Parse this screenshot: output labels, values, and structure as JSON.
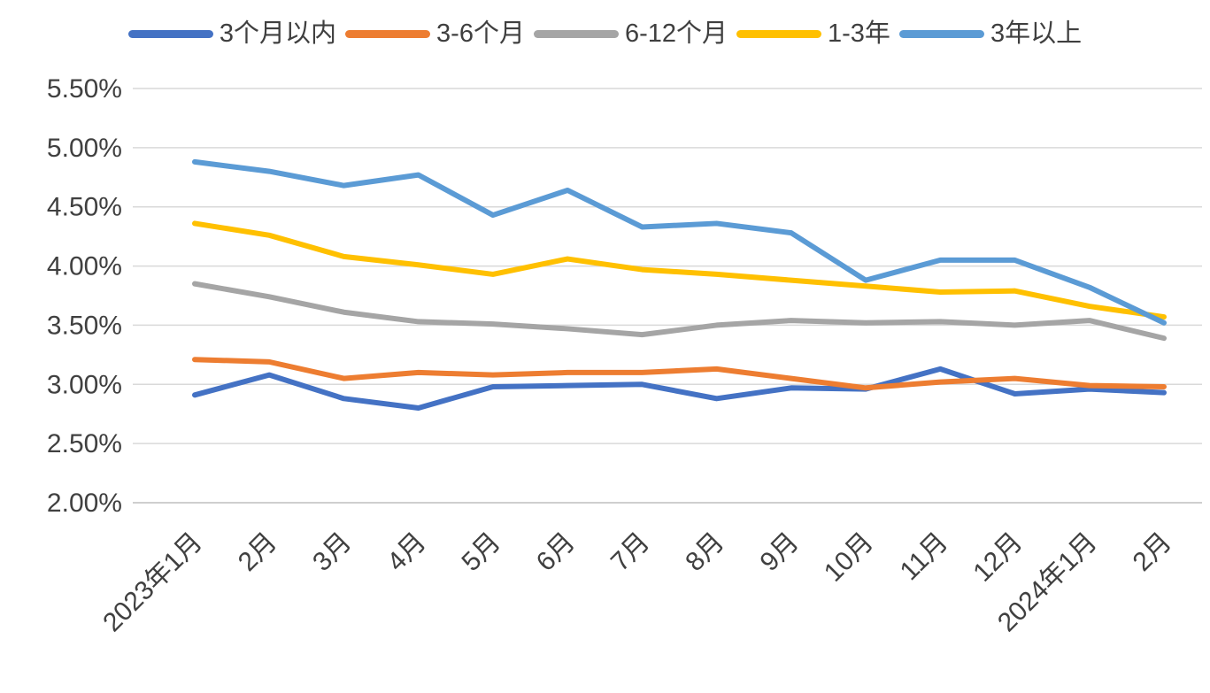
{
  "chart_data": {
    "type": "line",
    "title": "",
    "xlabel": "",
    "ylabel": "",
    "categories": [
      "2023年1月",
      "2月",
      "3月",
      "4月",
      "5月",
      "6月",
      "7月",
      "8月",
      "9月",
      "10月",
      "11月",
      "12月",
      "2024年1月",
      "2月"
    ],
    "series": [
      {
        "name": "3个月以内",
        "color": "#4472C4",
        "values": [
          2.91,
          3.08,
          2.88,
          2.8,
          2.98,
          2.99,
          3.0,
          2.88,
          2.97,
          2.96,
          3.13,
          2.92,
          2.96,
          2.93
        ]
      },
      {
        "name": "3-6个月",
        "color": "#ED7D31",
        "values": [
          3.21,
          3.19,
          3.05,
          3.1,
          3.08,
          3.1,
          3.1,
          3.13,
          3.05,
          2.97,
          3.02,
          3.05,
          2.99,
          2.98
        ]
      },
      {
        "name": "6-12个月",
        "color": "#A5A5A5",
        "values": [
          3.85,
          3.74,
          3.61,
          3.53,
          3.51,
          3.47,
          3.42,
          3.5,
          3.54,
          3.52,
          3.53,
          3.5,
          3.54,
          3.39
        ]
      },
      {
        "name": "1-3年",
        "color": "#FFC000",
        "values": [
          4.36,
          4.26,
          4.08,
          4.01,
          3.93,
          4.06,
          3.97,
          3.93,
          3.88,
          3.83,
          3.78,
          3.79,
          3.66,
          3.57
        ]
      },
      {
        "name": "3年以上",
        "color": "#5B9BD5",
        "values": [
          4.88,
          4.8,
          4.68,
          4.77,
          4.43,
          4.64,
          4.33,
          4.36,
          4.28,
          3.88,
          4.05,
          4.05,
          3.82,
          3.52
        ]
      }
    ],
    "y_ticks": [
      "5.50%",
      "5.00%",
      "4.50%",
      "4.00%",
      "3.50%",
      "3.00%",
      "2.50%",
      "2.00%"
    ],
    "y_tick_values": [
      5.5,
      5.0,
      4.5,
      4.0,
      3.5,
      3.0,
      2.5,
      2.0
    ],
    "ylim": [
      2.0,
      5.5
    ],
    "grid": "horizontal",
    "legend_position": "top",
    "gridline_color": "#D9D9D9",
    "axis_line_color": "#BFBFBF",
    "axis_text_color": "#404040"
  }
}
